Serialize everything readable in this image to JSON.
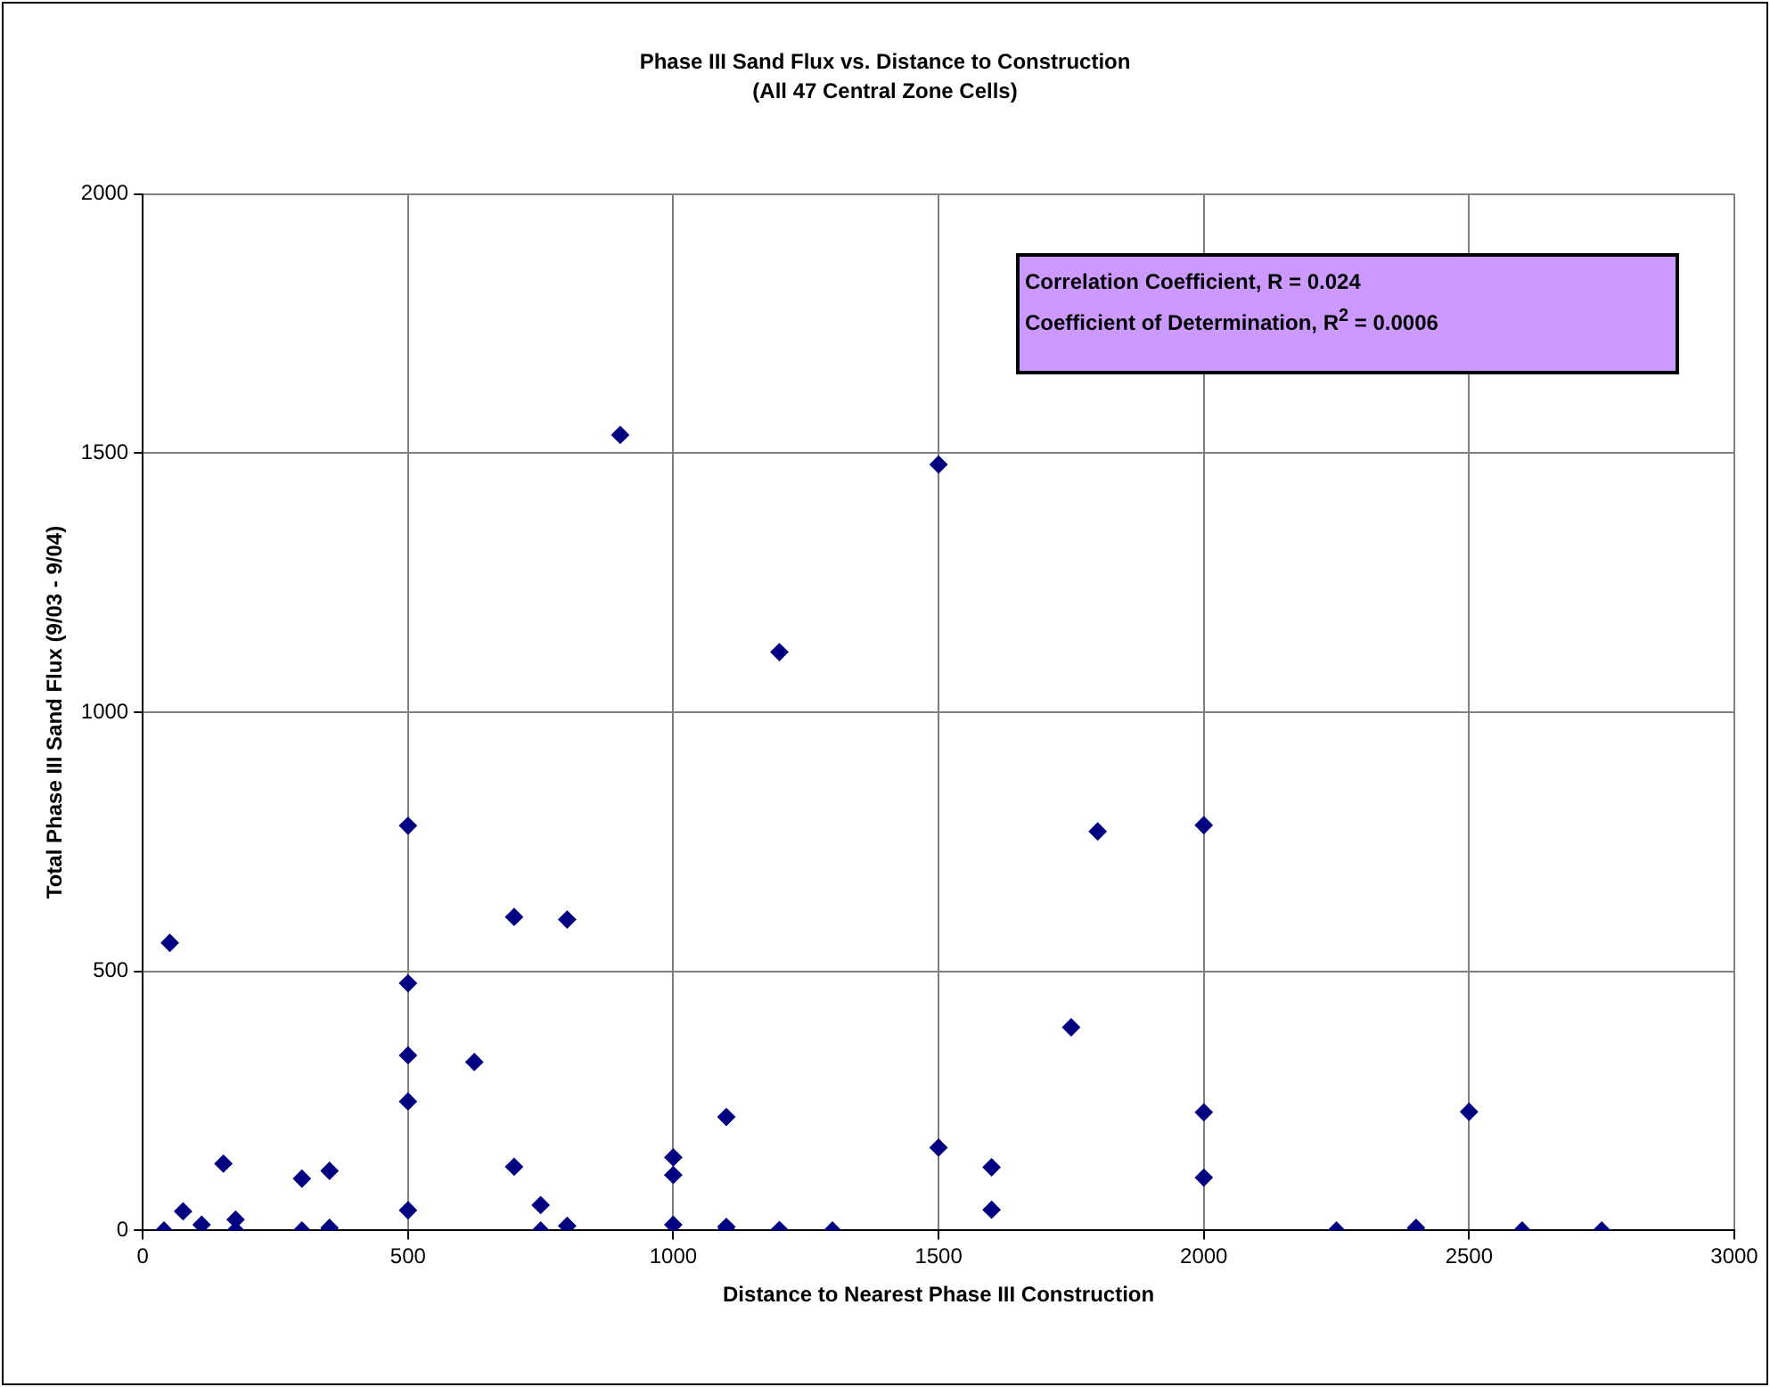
{
  "chart_data": {
    "type": "scatter",
    "title": "Phase III Sand Flux vs. Distance to Construction",
    "subtitle": "(All 47 Central Zone Cells)",
    "xlabel": "Distance to Nearest Phase III Construction",
    "ylabel": "Total Phase III Sand Flux (9/03 - 9/04)",
    "x": [
      40,
      51,
      76,
      111,
      152,
      175,
      175,
      300,
      300,
      352,
      352,
      500,
      500,
      500,
      500,
      500,
      625,
      700,
      800,
      700,
      750,
      750,
      800,
      1000,
      1000,
      1000,
      1100,
      1100,
      1100,
      1200,
      1300,
      1500,
      1600,
      1600,
      1750,
      1800,
      2000,
      2000,
      2000,
      2250,
      2400,
      2500,
      2600,
      2750,
      900,
      1200,
      1500
    ],
    "series": [
      {
        "color": "#000080",
        "values": [
          0,
          555,
          37,
          11,
          129,
          21,
          0,
          100,
          0,
          115,
          5,
          781,
          477,
          338,
          249,
          39,
          325,
          605,
          600,
          123,
          49,
          0,
          9,
          141,
          107,
          11,
          219,
          7,
          1,
          1,
          0,
          160,
          122,
          40,
          392,
          770,
          782,
          228,
          102,
          0,
          5,
          229,
          0,
          0,
          1535,
          1116,
          1478
        ]
      }
    ],
    "xlim": [
      0,
      3000
    ],
    "xticks": [
      0,
      500,
      1000,
      1500,
      2000,
      2500,
      3000
    ],
    "ylim": [
      0,
      2000
    ],
    "yticks": [
      0,
      500,
      1000,
      1500,
      2000
    ],
    "grid": true,
    "legend": false,
    "marker": "diamond",
    "annotations": [
      "Correlation Coefficient, R = 0.024",
      "Coefficient of Determination, R$^{2}$ = 0.0006"
    ]
  }
}
